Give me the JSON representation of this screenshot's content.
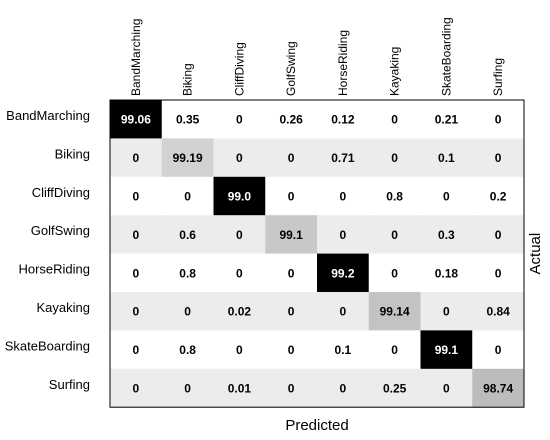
{
  "chart_data": {
    "type": "heatmap",
    "title": "",
    "xlabel": "Predicted",
    "ylabel": "Actual",
    "x_categories": [
      "BandMarching",
      "Biking",
      "CliffDiving",
      "GolfSwing",
      "HorseRiding",
      "Kayaking",
      "SkateBoarding",
      "Surfing"
    ],
    "y_categories": [
      "BandMarching",
      "Biking",
      "CliffDiving",
      "GolfSwing",
      "HorseRiding",
      "Kayaking",
      "SkateBoarding",
      "Surfing"
    ],
    "cell_labels": [
      [
        "99.06",
        "0.35",
        "0",
        "0.26",
        "0.12",
        "0",
        "0.21",
        "0"
      ],
      [
        "0",
        "99.19",
        "0",
        "0",
        "0.71",
        "0",
        "0.1",
        "0"
      ],
      [
        "0",
        "0",
        "99.0",
        "0",
        "0",
        "0.8",
        "0",
        "0.2"
      ],
      [
        "0",
        "0.6",
        "0",
        "99.1",
        "0",
        "0",
        "0.3",
        "0"
      ],
      [
        "0",
        "0.8",
        "0",
        "0",
        "99.2",
        "0",
        "0.18",
        "0"
      ],
      [
        "0",
        "0",
        "0.02",
        "0",
        "0",
        "99.14",
        "0",
        "0.84"
      ],
      [
        "0",
        "0.8",
        "0",
        "0",
        "0.1",
        "0",
        "99.1",
        "0"
      ],
      [
        "0",
        "0",
        "0.01",
        "0",
        "0",
        "0.25",
        "0",
        "98.74"
      ]
    ],
    "row_stripe_colors": [
      "#ffffff",
      "#ececec"
    ],
    "diagonal_colors": [
      "#000000",
      "#d2d2d2",
      "#000000",
      "#c8c8c8",
      "#000000",
      "#c3c3c3",
      "#000000",
      "#bcbcbc"
    ],
    "diagonal_text_colors": [
      "#ffffff",
      "#000000",
      "#ffffff",
      "#000000",
      "#ffffff",
      "#000000",
      "#ffffff",
      "#000000"
    ],
    "grid": false
  }
}
